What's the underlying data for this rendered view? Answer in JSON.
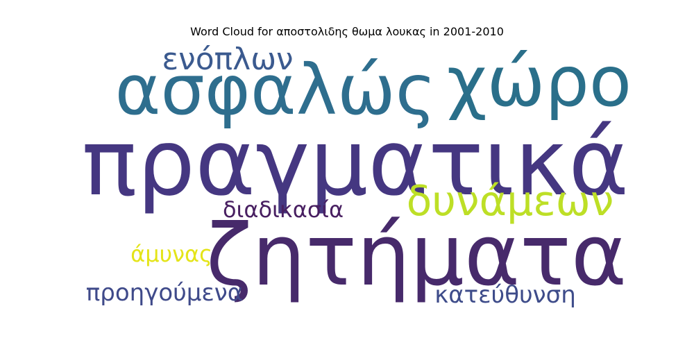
{
  "chart_data": {
    "type": "wordcloud",
    "title": "Word Cloud for αποστολιδης θωμα λουκας in 2001-2010",
    "words": [
      {
        "text": "πραγματικά",
        "color": "#453781",
        "rank": 1
      },
      {
        "text": "ζητήματα",
        "color": "#472a6b",
        "rank": 2
      },
      {
        "text": "ασφαλώς",
        "color": "#2e6e8e",
        "rank": 3
      },
      {
        "text": "χώρο",
        "color": "#2a6f8a",
        "rank": 4
      },
      {
        "text": "δυνάμεων",
        "color": "#bddf26",
        "rank": 5
      },
      {
        "text": "ενόπλων",
        "color": "#3b5a8f",
        "rank": 6
      },
      {
        "text": "προηγούμενα",
        "color": "#3f4a8a",
        "rank": 7
      },
      {
        "text": "κατεύθυνση",
        "color": "#3e4c8a",
        "rank": 8
      },
      {
        "text": "διαδικασία",
        "color": "#481f61",
        "rank": 9
      },
      {
        "text": "άμυνας",
        "color": "#e4e419",
        "rank": 10
      }
    ]
  }
}
